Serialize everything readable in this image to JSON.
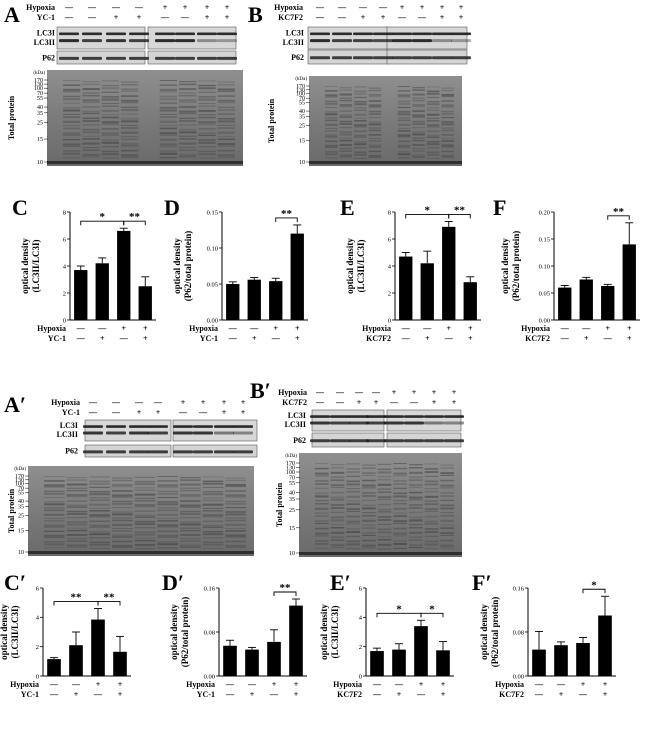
{
  "figure": {
    "panel_labels": {
      "A": "A",
      "B": "B",
      "C": "C",
      "D": "D",
      "E": "E",
      "F": "F",
      "Ap": "A′",
      "Bp": "B′",
      "Cp": "C′",
      "Dp": "D′",
      "Ep": "E′",
      "Fp": "F′"
    },
    "treatment_labels": {
      "hypoxia": "Hypoxia",
      "yc1": "YC-1",
      "kc7f2": "KC7F2"
    },
    "blot_labels": {
      "lc3i": "LC3I",
      "lc3ii": "LC3II",
      "p62": "P62",
      "total_protein": "Total protein",
      "kda": "(kDa)"
    },
    "markers": [
      "170",
      "130",
      "100",
      "70",
      "55",
      "40",
      "35",
      "25",
      "15",
      "10"
    ],
    "signs": {
      "minus": "—",
      "plus": "+"
    },
    "axis": {
      "ylabel_top": "optical density",
      "ylabel_lc3": "(LC3II/LC3I)",
      "ylabel_p62": "(P62/total protein)"
    },
    "significance": {
      "one": "*",
      "two": "**"
    }
  },
  "chart_data": [
    {
      "id": "C",
      "type": "bar",
      "categories": [
        "1",
        "2",
        "3",
        "4"
      ],
      "values": [
        3.7,
        4.2,
        6.6,
        2.5
      ],
      "errors": [
        0.3,
        0.4,
        0.2,
        0.7
      ],
      "ylim": [
        0,
        8
      ],
      "yticks": [
        "0",
        "2",
        "4",
        "6",
        "8"
      ],
      "treatment": "YC-1",
      "ylabel": "(LC3II/LC3I)",
      "sig": [
        {
          "from": 0,
          "to": 2,
          "label": "*"
        },
        {
          "from": 2,
          "to": 3,
          "label": "**"
        }
      ]
    },
    {
      "id": "D",
      "type": "bar",
      "categories": [
        "1",
        "2",
        "3",
        "4"
      ],
      "values": [
        0.05,
        0.056,
        0.054,
        0.12
      ],
      "errors": [
        0.003,
        0.003,
        0.004,
        0.012
      ],
      "ylim": [
        0,
        0.15
      ],
      "yticks": [
        "0.00",
        "0.05",
        "0.10",
        "0.15"
      ],
      "treatment": "YC-1",
      "ylabel": "(P62/total protein)",
      "sig": [
        {
          "from": 2,
          "to": 3,
          "label": "**"
        }
      ]
    },
    {
      "id": "E",
      "type": "bar",
      "categories": [
        "1",
        "2",
        "3",
        "4"
      ],
      "values": [
        4.7,
        4.2,
        6.9,
        2.8
      ],
      "errors": [
        0.3,
        0.9,
        0.4,
        0.4
      ],
      "ylim": [
        0,
        8
      ],
      "yticks": [
        "0",
        "2",
        "4",
        "6",
        "8"
      ],
      "treatment": "KC7F2",
      "ylabel": "(LC3II/LC3I)",
      "sig": [
        {
          "from": 0,
          "to": 2,
          "label": "*"
        },
        {
          "from": 2,
          "to": 3,
          "label": "**"
        }
      ]
    },
    {
      "id": "F",
      "type": "bar",
      "categories": [
        "1",
        "2",
        "3",
        "4"
      ],
      "values": [
        0.06,
        0.075,
        0.063,
        0.14
      ],
      "errors": [
        0.004,
        0.004,
        0.003,
        0.04
      ],
      "ylim": [
        0,
        0.2
      ],
      "yticks": [
        "0.00",
        "0.05",
        "0.10",
        "0.15",
        "0.20"
      ],
      "treatment": "KC7F2",
      "ylabel": "(P62/total protein)",
      "sig": [
        {
          "from": 2,
          "to": 3,
          "label": "**"
        }
      ]
    },
    {
      "id": "Cp",
      "type": "bar",
      "categories": [
        "1",
        "2",
        "3",
        "4"
      ],
      "values": [
        1.15,
        2.1,
        3.85,
        1.65
      ],
      "errors": [
        0.1,
        0.9,
        0.75,
        1.05
      ],
      "ylim": [
        0,
        6
      ],
      "yticks": [
        "0",
        "2",
        "4",
        "6"
      ],
      "treatment": "YC-1",
      "ylabel": "(LC3II/LC3I)",
      "sig": [
        {
          "from": 0,
          "to": 2,
          "label": "**"
        },
        {
          "from": 2,
          "to": 3,
          "label": "**"
        }
      ]
    },
    {
      "id": "Dp",
      "type": "bar",
      "categories": [
        "1",
        "2",
        "3",
        "4"
      ],
      "values": [
        0.055,
        0.048,
        0.062,
        0.128
      ],
      "errors": [
        0.01,
        0.004,
        0.022,
        0.012
      ],
      "ylim": [
        0,
        0.16
      ],
      "yticks": [
        "0.00",
        "0.08",
        "0.16"
      ],
      "treatment": "YC-1",
      "ylabel": "(P62/total protein)",
      "sig": [
        {
          "from": 2,
          "to": 3,
          "label": "**"
        }
      ]
    },
    {
      "id": "Ep",
      "type": "bar",
      "categories": [
        "1",
        "2",
        "3",
        "4"
      ],
      "values": [
        1.7,
        1.8,
        3.4,
        1.75
      ],
      "errors": [
        0.2,
        0.4,
        0.4,
        0.6
      ],
      "ylim": [
        0,
        6
      ],
      "yticks": [
        "0",
        "2",
        "4",
        "6"
      ],
      "treatment": "KC7F2",
      "ylabel": "(LC3II/LC3I)",
      "sig": [
        {
          "from": 0,
          "to": 2,
          "label": "*"
        },
        {
          "from": 2,
          "to": 3,
          "label": "*"
        }
      ]
    },
    {
      "id": "Fp",
      "type": "bar",
      "categories": [
        "1",
        "2",
        "3",
        "4"
      ],
      "values": [
        0.048,
        0.056,
        0.06,
        0.11
      ],
      "errors": [
        0.033,
        0.006,
        0.01,
        0.035
      ],
      "ylim": [
        0,
        0.16
      ],
      "yticks": [
        "0.00",
        "0.08",
        "0.16"
      ],
      "treatment": "KC7F2",
      "ylabel": "(P62/total protein)",
      "sig": [
        {
          "from": 2,
          "to": 3,
          "label": "*"
        }
      ]
    }
  ]
}
